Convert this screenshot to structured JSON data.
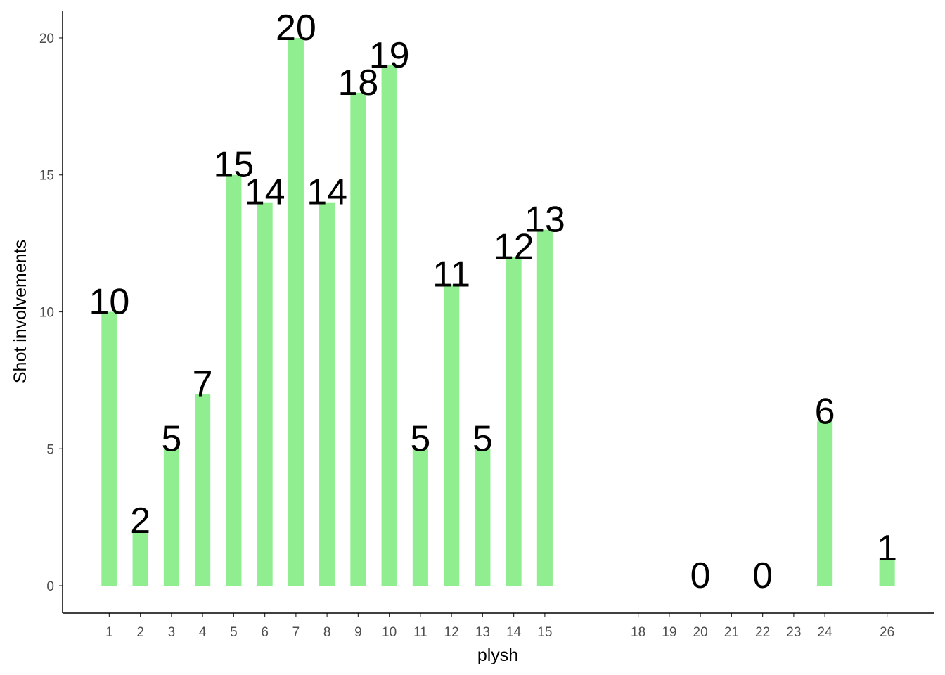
{
  "chart_data": {
    "type": "bar",
    "x_label": "plysh",
    "y_label": "Shot involvements",
    "x": [
      1,
      2,
      3,
      4,
      5,
      6,
      7,
      8,
      9,
      10,
      11,
      12,
      13,
      14,
      15,
      20,
      22,
      24,
      26
    ],
    "values": [
      10,
      2,
      5,
      7,
      15,
      14,
      20,
      14,
      18,
      19,
      5,
      11,
      5,
      12,
      13,
      0,
      0,
      6,
      1
    ],
    "color": "#90ee90",
    "xlim": [
      -0.5,
      27.5
    ],
    "ylim": [
      -1,
      21
    ],
    "xticks": [
      1,
      2,
      3,
      4,
      5,
      6,
      7,
      8,
      9,
      10,
      11,
      12,
      13,
      14,
      15,
      18,
      19,
      20,
      21,
      22,
      23,
      24,
      26
    ],
    "yticks": [
      0,
      5,
      10,
      15,
      20
    ],
    "grid": false
  }
}
